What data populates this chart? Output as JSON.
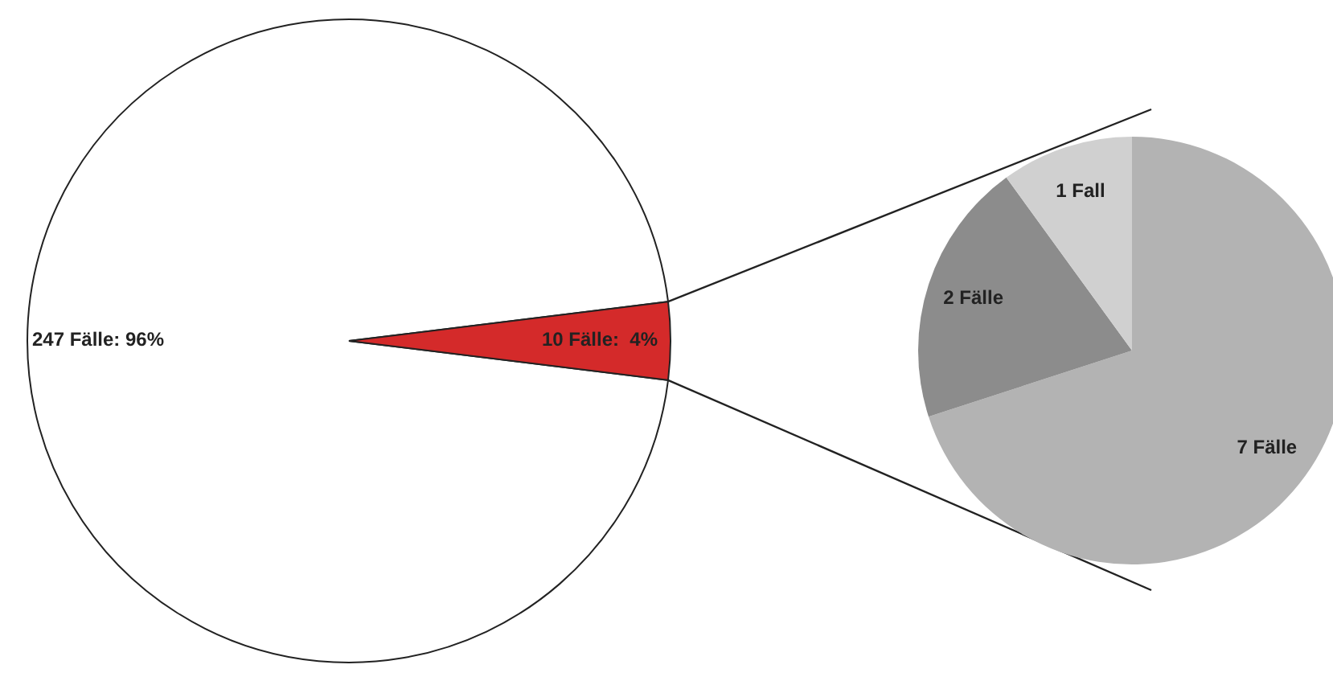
{
  "chart_data": [
    {
      "type": "pie",
      "categories": [
        null,
        null
      ],
      "values": [
        247,
        10
      ],
      "colors": [
        "#ffffff",
        "#d42a2a"
      ],
      "value_labels": [
        "247 Fälle: 96%",
        "10 Fälle:  4%"
      ]
    },
    {
      "type": "pie",
      "categories": [
        null,
        null,
        null
      ],
      "values": [
        7,
        2,
        1
      ],
      "colors": [
        "#b3b3b3",
        "#8c8c8c",
        "#d0d0d0"
      ],
      "value_labels": [
        "7 Fälle",
        "2 Fälle",
        "1 Fall"
      ]
    }
  ]
}
